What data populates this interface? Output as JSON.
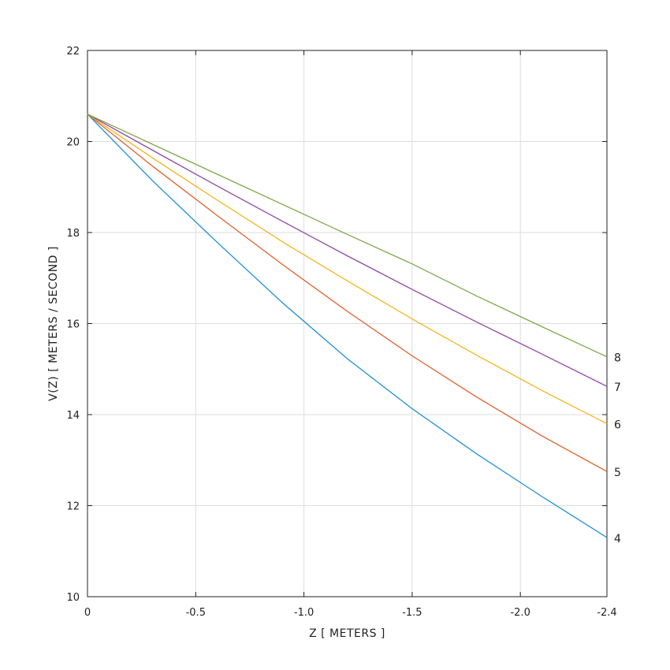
{
  "chart_data": {
    "type": "line",
    "title": "",
    "xlabel": "Z [ METERS ]",
    "ylabel": "V(Z) [ METERS / SECOND ]",
    "xlim": [
      0,
      -2.4
    ],
    "ylim": [
      10,
      22
    ],
    "grid": true,
    "legend": "none; series labels printed at right end of each line",
    "x_ticks": [
      0,
      -0.5,
      -1.0,
      -1.5,
      -2.0,
      -2.4
    ],
    "x_tick_labels": [
      "0",
      "-0.5",
      "-1.0",
      "-1.5",
      "-2.0",
      "-2.4"
    ],
    "y_ticks": [
      10,
      12,
      14,
      16,
      18,
      20,
      22
    ],
    "y_tick_labels": [
      "10",
      "12",
      "14",
      "16",
      "18",
      "20",
      "22"
    ],
    "x": [
      0,
      -0.3,
      -0.6,
      -0.9,
      -1.2,
      -1.5,
      -1.8,
      -2.1,
      -2.4
    ],
    "series": [
      {
        "name": "4",
        "color": "#1f8fd0",
        "values": [
          20.6,
          19.14,
          17.78,
          16.46,
          15.23,
          14.13,
          13.13,
          12.2,
          11.3
        ]
      },
      {
        "name": "5",
        "color": "#e0602b",
        "values": [
          20.6,
          19.46,
          18.37,
          17.3,
          16.27,
          15.29,
          14.38,
          13.53,
          12.75
        ]
      },
      {
        "name": "6",
        "color": "#f2b51e",
        "values": [
          20.6,
          19.64,
          18.71,
          17.8,
          16.94,
          16.1,
          15.3,
          14.53,
          13.8
        ]
      },
      {
        "name": "7",
        "color": "#8e4aa3",
        "values": [
          20.6,
          19.81,
          19.02,
          18.25,
          17.49,
          16.75,
          16.03,
          15.33,
          14.62
        ]
      },
      {
        "name": "8",
        "color": "#7ea84a",
        "values": [
          20.6,
          19.94,
          19.28,
          18.62,
          17.96,
          17.31,
          16.6,
          15.93,
          15.27
        ]
      }
    ]
  }
}
